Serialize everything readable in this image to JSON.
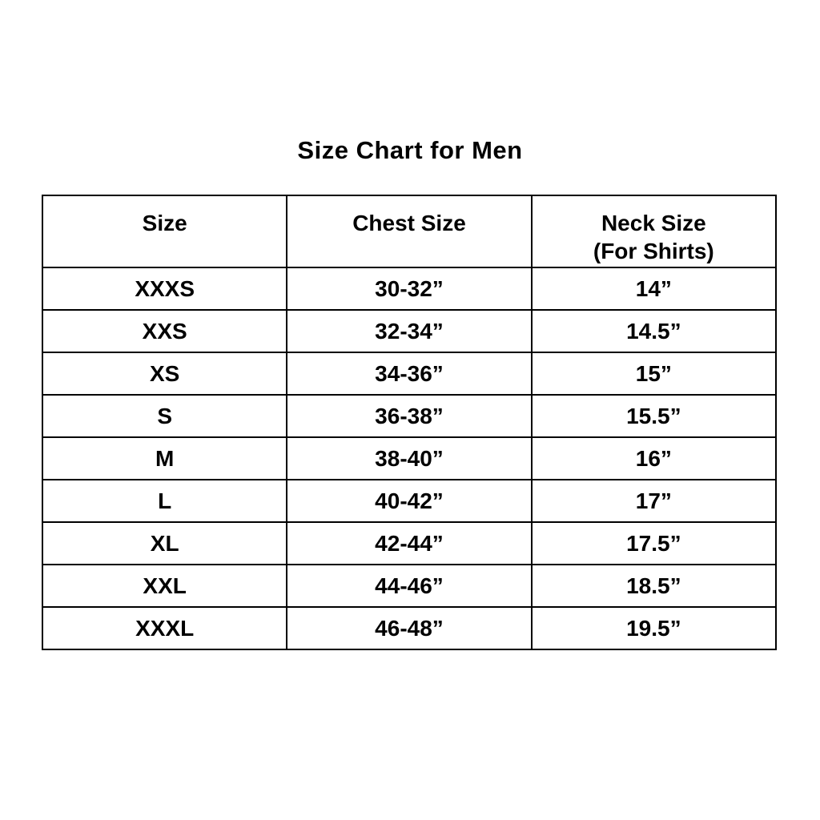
{
  "title": "Size Chart for Men",
  "table": {
    "headers": [
      {
        "label": "Size",
        "sublabel": ""
      },
      {
        "label": "Chest Size",
        "sublabel": ""
      },
      {
        "label": "Neck Size",
        "sublabel": "(For Shirts)"
      }
    ],
    "rows": [
      {
        "size": "XXXS",
        "chest": "30-32”",
        "neck": "14”"
      },
      {
        "size": "XXS",
        "chest": "32-34”",
        "neck": "14.5”"
      },
      {
        "size": "XS",
        "chest": "34-36”",
        "neck": "15”"
      },
      {
        "size": "S",
        "chest": "36-38”",
        "neck": "15.5”"
      },
      {
        "size": "M",
        "chest": "38-40”",
        "neck": "16”"
      },
      {
        "size": "L",
        "chest": "40-42”",
        "neck": "17”"
      },
      {
        "size": "XL",
        "chest": "42-44”",
        "neck": "17.5”"
      },
      {
        "size": "XXL",
        "chest": "44-46”",
        "neck": "18.5”"
      },
      {
        "size": "XXXL",
        "chest": "46-48”",
        "neck": "19.5”"
      }
    ]
  },
  "colors": {
    "background": "#ffffff",
    "text": "#000000",
    "border": "#000000"
  },
  "chart_data": {
    "type": "table",
    "title": "Size Chart for Men",
    "columns": [
      "Size",
      "Chest Size",
      "Neck Size (For Shirts)"
    ],
    "rows": [
      [
        "XXXS",
        "30-32”",
        "14”"
      ],
      [
        "XXS",
        "32-34”",
        "14.5”"
      ],
      [
        "XS",
        "34-36”",
        "15”"
      ],
      [
        "S",
        "36-38”",
        "15.5”"
      ],
      [
        "M",
        "38-40”",
        "16”"
      ],
      [
        "L",
        "40-42”",
        "17”"
      ],
      [
        "XL",
        "42-44”",
        "17.5”"
      ],
      [
        "XXL",
        "44-46”",
        "18.5”"
      ],
      [
        "XXXL",
        "46-48”",
        "19.5”"
      ]
    ]
  }
}
